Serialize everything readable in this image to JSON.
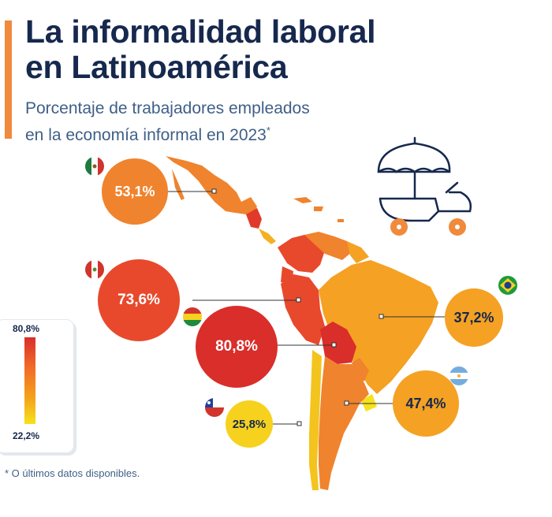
{
  "header": {
    "title_line1": "La informalidad laboral",
    "title_line2": "en Latinoamérica",
    "subtitle_line1": "Porcentaje de trabajadores empleados",
    "subtitle_line2": "en la economía informal en 2023",
    "subtitle_mark": "*"
  },
  "legend": {
    "max": "80,8%",
    "min": "22,2%"
  },
  "countries": {
    "mexico": {
      "label": "53,1%",
      "value": 53.1
    },
    "peru": {
      "label": "73,6%",
      "value": 73.6
    },
    "bolivia": {
      "label": "80,8%",
      "value": 80.8
    },
    "brazil": {
      "label": "37,2%",
      "value": 37.2
    },
    "argentina": {
      "label": "47,4%",
      "value": 47.4
    },
    "chile": {
      "label": "25,8%",
      "value": 25.8
    }
  },
  "footnote": "* O últimos datos disponibles.",
  "colors": {
    "accent": "#f08a3c",
    "title": "#16284d",
    "subtitle": "#3f5f88",
    "high": "#d92e2a",
    "mid_high": "#e8492c",
    "mid": "#f0832d",
    "mid_low": "#f5a123",
    "low": "#f6d21e",
    "illustration_stroke": "#16284d",
    "illustration_wheel": "#f08a3c"
  }
}
